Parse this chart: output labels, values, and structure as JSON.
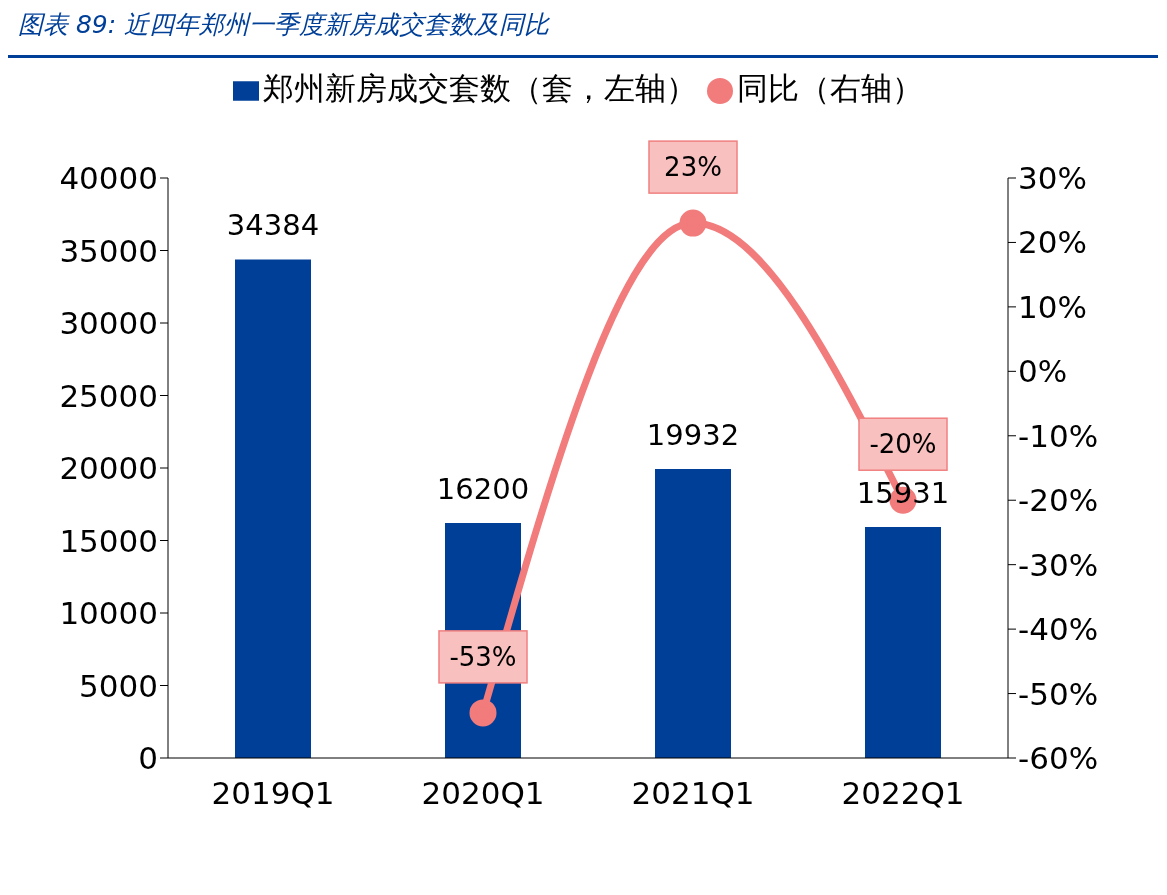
{
  "chart_data": {
    "type": "bar",
    "title": "图表 89:  近四年郑州一季度新房成交套数及同比",
    "categories": [
      "2019Q1",
      "2020Q1",
      "2021Q1",
      "2022Q1"
    ],
    "series": [
      {
        "name": "郑州新房成交套数（套，左轴）",
        "color": "#003f98",
        "values": [
          34384,
          16200,
          19932,
          15931
        ],
        "value_labels": [
          "34384",
          "16200",
          "19932",
          "15931"
        ]
      },
      {
        "name": "同比（右轴）",
        "type": "line",
        "axis": "y2",
        "color": "#f27b7b",
        "values": [
          null,
          -53,
          23,
          -20
        ],
        "value_labels": [
          null,
          "-53%",
          "23%",
          "-20%"
        ]
      }
    ],
    "ylim": [
      0,
      40000
    ],
    "yticks": [
      0,
      5000,
      10000,
      15000,
      20000,
      25000,
      30000,
      35000,
      40000
    ],
    "y2lim": [
      -60,
      30
    ],
    "y2ticks": [
      {
        "value": -60,
        "label": "-60%"
      },
      {
        "value": -50,
        "label": "-50%"
      },
      {
        "value": -40,
        "label": "-40%"
      },
      {
        "value": -30,
        "label": "-30%"
      },
      {
        "value": -20,
        "label": "-20%"
      },
      {
        "value": -10,
        "label": "-10%"
      },
      {
        "value": 0,
        "label": "0%"
      },
      {
        "value": 10,
        "label": "10%"
      },
      {
        "value": 20,
        "label": "20%"
      },
      {
        "value": 30,
        "label": "30%"
      }
    ],
    "legend": "top",
    "grid": false,
    "marker": "circle",
    "line_style": "solid"
  }
}
